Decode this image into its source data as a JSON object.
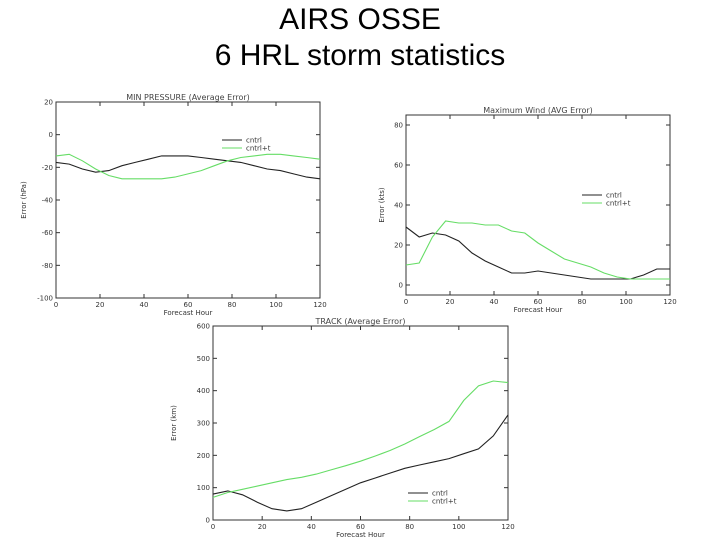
{
  "slide": {
    "title_line1": "AIRS OSSE",
    "title_line2": "6 HRL storm statistics"
  },
  "colors": {
    "cntrl": "#222222",
    "cntrl_t": "#66dd66",
    "axis": "#333333"
  },
  "chart_data": [
    {
      "id": "pressure",
      "type": "line",
      "title": "MIN PRESSURE (Average Error)",
      "xlabel": "Forecast Hour",
      "ylabel": "Error (hPa)",
      "xlim": [
        0,
        120
      ],
      "ylim": [
        -100,
        20
      ],
      "xticks": [
        0,
        20,
        40,
        60,
        80,
        100,
        120
      ],
      "yticks": [
        -100,
        -80,
        -60,
        -40,
        -20,
        0,
        20
      ],
      "ytick_labels": [
        "-100",
        "-80",
        "-60",
        "-40",
        "-20",
        "0",
        "20"
      ],
      "grid": false,
      "legend": "right",
      "series": [
        {
          "name": "cntrl",
          "color": "#222222",
          "x": [
            0,
            6,
            12,
            18,
            24,
            30,
            36,
            42,
            48,
            54,
            60,
            66,
            72,
            78,
            84,
            90,
            96,
            102,
            108,
            114,
            120
          ],
          "y": [
            -17,
            -18,
            -21,
            -23,
            -22,
            -19,
            -17,
            -15,
            -13,
            -13,
            -13,
            -14,
            -15,
            -16,
            -17,
            -19,
            -21,
            -22,
            -24,
            -26,
            -27
          ]
        },
        {
          "name": "cntrl+t",
          "color": "#66dd66",
          "x": [
            0,
            6,
            12,
            18,
            24,
            30,
            36,
            42,
            48,
            54,
            60,
            66,
            72,
            78,
            84,
            90,
            96,
            102,
            108,
            114,
            120
          ],
          "y": [
            -13,
            -12,
            -16,
            -21,
            -25,
            -27,
            -27,
            -27,
            -27,
            -26,
            -24,
            -22,
            -19,
            -16,
            -14,
            -13,
            -12,
            -12,
            -13,
            -14,
            -15
          ]
        }
      ]
    },
    {
      "id": "wind",
      "type": "line",
      "title": "Maximum Wind (AVG Error)",
      "xlabel": "Forecast Hour",
      "ylabel": "Error (kts)",
      "xlim": [
        0,
        120
      ],
      "ylim": [
        -5,
        85
      ],
      "xticks": [
        0,
        20,
        40,
        60,
        80,
        100,
        120
      ],
      "yticks": [
        0,
        20,
        40,
        60,
        80
      ],
      "ytick_labels": [
        "0",
        "20",
        "40",
        "60",
        "80"
      ],
      "grid": false,
      "legend": "right",
      "series": [
        {
          "name": "cntrl",
          "color": "#222222",
          "x": [
            0,
            6,
            12,
            18,
            24,
            30,
            36,
            42,
            48,
            54,
            60,
            66,
            72,
            78,
            84,
            90,
            96,
            102,
            108,
            114,
            120
          ],
          "y": [
            29,
            24,
            26,
            25,
            22,
            16,
            12,
            9,
            6,
            6,
            7,
            6,
            5,
            4,
            3,
            3,
            3,
            3,
            5,
            8,
            8
          ]
        },
        {
          "name": "cntrl+t",
          "color": "#66dd66",
          "x": [
            0,
            6,
            12,
            18,
            24,
            30,
            36,
            42,
            48,
            54,
            60,
            66,
            72,
            78,
            84,
            90,
            96,
            102,
            108,
            114,
            120
          ],
          "y": [
            10,
            11,
            24,
            32,
            31,
            31,
            30,
            30,
            27,
            26,
            21,
            17,
            13,
            11,
            9,
            6,
            4,
            3,
            3,
            3,
            3
          ]
        }
      ]
    },
    {
      "id": "track",
      "type": "line",
      "title": "TRACK (Average Error)",
      "xlabel": "Forecast Hour",
      "ylabel": "Error (km)",
      "xlim": [
        0,
        120
      ],
      "ylim": [
        0,
        600
      ],
      "xticks": [
        0,
        20,
        40,
        60,
        80,
        100,
        120
      ],
      "yticks": [
        0,
        100,
        200,
        300,
        400,
        500,
        600
      ],
      "ytick_labels": [
        "0",
        "100",
        "200",
        "300",
        "400",
        "500",
        "600"
      ],
      "grid": false,
      "legend": "bottom-right",
      "series": [
        {
          "name": "cntrl",
          "color": "#222222",
          "x": [
            0,
            6,
            12,
            18,
            24,
            30,
            36,
            42,
            48,
            54,
            60,
            66,
            72,
            78,
            84,
            90,
            96,
            102,
            108,
            114,
            120
          ],
          "y": [
            80,
            90,
            78,
            55,
            35,
            28,
            35,
            55,
            75,
            95,
            115,
            130,
            145,
            160,
            170,
            180,
            190,
            205,
            220,
            260,
            325
          ]
        },
        {
          "name": "cntrl+t",
          "color": "#66dd66",
          "x": [
            0,
            6,
            12,
            18,
            24,
            30,
            36,
            42,
            48,
            54,
            60,
            66,
            72,
            78,
            84,
            90,
            96,
            102,
            108,
            114,
            120
          ],
          "y": [
            70,
            85,
            95,
            105,
            115,
            125,
            132,
            142,
            155,
            168,
            182,
            198,
            215,
            235,
            258,
            280,
            305,
            370,
            415,
            430,
            425
          ]
        }
      ]
    }
  ]
}
